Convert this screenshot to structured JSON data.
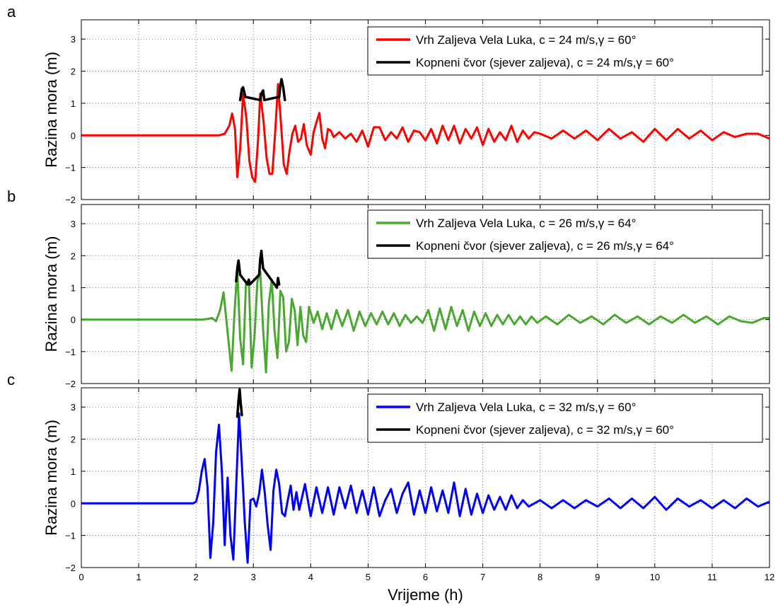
{
  "chart_data": [
    {
      "type": "line",
      "panel_label": "a",
      "xlabel": "",
      "ylabel": "Razina mora (m)",
      "xlim": [
        0,
        12
      ],
      "ylim": [
        -2,
        3.6
      ],
      "xticks": [
        0,
        1,
        2,
        3,
        4,
        5,
        6,
        7,
        8,
        9,
        10,
        11,
        12
      ],
      "yticks": [
        -2,
        -1,
        0,
        1,
        2,
        3
      ],
      "grid": true,
      "legend_position": "top-right",
      "series": [
        {
          "name": "Vrh Zaljeva Vela Luka, c = 24 m/s,γ = 60°",
          "color": "#ff0000",
          "x": [
            0,
            2.2,
            2.4,
            2.5,
            2.58,
            2.63,
            2.68,
            2.72,
            2.77,
            2.82,
            2.88,
            2.93,
            2.98,
            3.03,
            3.08,
            3.12,
            3.18,
            3.23,
            3.28,
            3.33,
            3.38,
            3.43,
            3.48,
            3.53,
            3.58,
            3.63,
            3.68,
            3.73,
            3.78,
            3.83,
            3.88,
            3.93,
            4.0,
            4.05,
            4.1,
            4.15,
            4.2,
            4.25,
            4.3,
            4.35,
            4.4,
            4.5,
            4.6,
            4.7,
            4.8,
            4.9,
            5.0,
            5.1,
            5.2,
            5.3,
            5.4,
            5.5,
            5.6,
            5.7,
            5.8,
            5.9,
            6.0,
            6.1,
            6.2,
            6.3,
            6.4,
            6.5,
            6.6,
            6.7,
            6.8,
            6.9,
            7.0,
            7.1,
            7.2,
            7.3,
            7.4,
            7.5,
            7.6,
            7.7,
            7.8,
            7.9,
            8.0,
            8.2,
            8.4,
            8.6,
            8.8,
            9.0,
            9.2,
            9.4,
            9.6,
            9.8,
            10.0,
            10.2,
            10.4,
            10.6,
            10.8,
            11.0,
            11.2,
            11.4,
            11.6,
            11.8,
            12.0
          ],
          "y": [
            0,
            0,
            0,
            0.05,
            0.3,
            0.68,
            0.2,
            -1.3,
            -0.4,
            1.3,
            0.5,
            -0.8,
            -1.3,
            -1.45,
            -0.2,
            1.3,
            0.4,
            -0.7,
            -1.2,
            -1.2,
            0.1,
            1.6,
            0.4,
            -0.9,
            -1.2,
            -0.5,
            0.05,
            0.3,
            -0.2,
            -0.1,
            0.35,
            -0.3,
            -0.6,
            0.1,
            0.4,
            0.7,
            -0.1,
            -0.4,
            0.2,
            0.15,
            -0.05,
            0.1,
            -0.1,
            0.05,
            -0.2,
            0.15,
            -0.35,
            0.25,
            0.25,
            -0.15,
            0.1,
            -0.1,
            0.25,
            -0.2,
            0.15,
            0.1,
            -0.15,
            0.2,
            -0.25,
            0.3,
            -0.15,
            0.3,
            -0.25,
            0.2,
            -0.1,
            0.25,
            -0.3,
            0.2,
            -0.2,
            0.1,
            -0.15,
            0.3,
            -0.2,
            0.15,
            -0.1,
            0.1,
            0.05,
            -0.1,
            0.15,
            -0.1,
            0.15,
            -0.15,
            0.2,
            -0.1,
            0.1,
            -0.2,
            0.2,
            -0.15,
            0.2,
            -0.1,
            0.15,
            -0.15,
            0.1,
            -0.05,
            0.05,
            0.05,
            -0.1
          ]
        },
        {
          "name": "Kopneni čvor (sjever zaljeva), c = 24 m/s,γ = 60°",
          "color": "#000000",
          "x": [
            2.77,
            2.8,
            2.82,
            2.86,
            3.12,
            3.14,
            3.17,
            3.19,
            3.45,
            3.47,
            3.49,
            3.52,
            3.55
          ],
          "y": [
            1.1,
            1.45,
            1.5,
            1.2,
            1.1,
            1.3,
            1.4,
            1.1,
            1.2,
            1.55,
            1.75,
            1.5,
            1.1
          ]
        }
      ]
    },
    {
      "type": "line",
      "panel_label": "b",
      "xlabel": "",
      "ylabel": "Razina mora (m)",
      "xlim": [
        0,
        12
      ],
      "ylim": [
        -2,
        3.6
      ],
      "xticks": [
        0,
        1,
        2,
        3,
        4,
        5,
        6,
        7,
        8,
        9,
        10,
        11,
        12
      ],
      "yticks": [
        -2,
        -1,
        0,
        1,
        2,
        3
      ],
      "grid": true,
      "legend_position": "top-right",
      "series": [
        {
          "name": "Vrh Zaljeva Vela Luka, c = 26 m/s,γ = 64°",
          "color": "#4aa832",
          "x": [
            0,
            2.1,
            2.2,
            2.28,
            2.35,
            2.42,
            2.48,
            2.55,
            2.62,
            2.67,
            2.72,
            2.77,
            2.82,
            2.87,
            2.92,
            2.97,
            3.02,
            3.07,
            3.12,
            3.17,
            3.22,
            3.27,
            3.32,
            3.37,
            3.42,
            3.47,
            3.52,
            3.57,
            3.62,
            3.67,
            3.72,
            3.77,
            3.82,
            3.87,
            3.92,
            3.97,
            4.05,
            4.12,
            4.2,
            4.28,
            4.36,
            4.45,
            4.55,
            4.65,
            4.75,
            4.85,
            4.95,
            5.05,
            5.15,
            5.25,
            5.35,
            5.45,
            5.55,
            5.65,
            5.75,
            5.85,
            5.95,
            6.05,
            6.15,
            6.25,
            6.35,
            6.45,
            6.55,
            6.65,
            6.75,
            6.85,
            6.95,
            7.05,
            7.15,
            7.25,
            7.35,
            7.45,
            7.55,
            7.65,
            7.75,
            7.85,
            7.95,
            8.1,
            8.3,
            8.5,
            8.7,
            8.9,
            9.1,
            9.3,
            9.5,
            9.7,
            9.9,
            10.1,
            10.3,
            10.5,
            10.7,
            10.9,
            11.1,
            11.3,
            11.5,
            11.7,
            11.9,
            12.0
          ],
          "y": [
            0,
            0,
            0.02,
            0.05,
            -0.05,
            0.3,
            0.85,
            -0.4,
            -1.6,
            0.2,
            1.6,
            -0.6,
            -1.4,
            1.1,
            1.25,
            -1.5,
            -0.5,
            1.2,
            1.5,
            -0.3,
            -1.65,
            0.5,
            1.25,
            -0.4,
            -1.2,
            0.9,
            0.7,
            -1.0,
            -0.7,
            0.65,
            0.3,
            -0.8,
            0.4,
            -0.5,
            -0.7,
            0.4,
            -0.1,
            0.25,
            -0.3,
            0.2,
            -0.3,
            0.3,
            -0.2,
            0.3,
            -0.35,
            0.25,
            -0.2,
            0.2,
            -0.15,
            0.25,
            -0.15,
            0.2,
            -0.2,
            0.15,
            -0.1,
            0.1,
            -0.1,
            0.3,
            -0.35,
            0.35,
            -0.3,
            0.4,
            -0.2,
            0.3,
            -0.35,
            0.25,
            -0.2,
            0.2,
            -0.2,
            0.15,
            -0.15,
            0.15,
            -0.15,
            0.1,
            -0.15,
            0.1,
            -0.1,
            0.1,
            -0.15,
            0.15,
            -0.1,
            0.1,
            -0.15,
            0.15,
            -0.1,
            0.1,
            -0.15,
            0.1,
            -0.1,
            0.15,
            -0.1,
            0.1,
            -0.15,
            0.1,
            -0.05,
            -0.1,
            0.05,
            0.05
          ]
        },
        {
          "name": "Kopneni čvor (sjever zaljeva), c = 26 m/s,γ = 64°",
          "color": "#000000",
          "x": [
            2.7,
            2.72,
            2.74,
            2.77,
            2.9,
            2.92,
            2.94,
            3.1,
            3.12,
            3.14,
            3.17,
            3.41,
            3.43,
            3.45
          ],
          "y": [
            1.2,
            1.6,
            1.85,
            1.4,
            1.1,
            1.25,
            1.1,
            1.4,
            1.9,
            2.15,
            1.6,
            1.0,
            1.3,
            1.1
          ]
        }
      ]
    },
    {
      "type": "line",
      "panel_label": "c",
      "xlabel": "Vrijeme (h)",
      "ylabel": "Razina mora (m)",
      "xlim": [
        0,
        12
      ],
      "ylim": [
        -2,
        3.6
      ],
      "xticks": [
        0,
        1,
        2,
        3,
        4,
        5,
        6,
        7,
        8,
        9,
        10,
        11,
        12
      ],
      "yticks": [
        -2,
        -1,
        0,
        1,
        2,
        3
      ],
      "grid": true,
      "legend_position": "top-right",
      "series": [
        {
          "name": "Vrh Zaljeva Vela Luka, c = 32 m/s,γ = 60°",
          "color": "#0000ff",
          "x": [
            0,
            1.95,
            2.0,
            2.05,
            2.1,
            2.15,
            2.2,
            2.25,
            2.3,
            2.35,
            2.4,
            2.45,
            2.5,
            2.55,
            2.6,
            2.65,
            2.7,
            2.75,
            2.8,
            2.85,
            2.9,
            2.95,
            3.0,
            3.05,
            3.1,
            3.15,
            3.2,
            3.25,
            3.3,
            3.35,
            3.4,
            3.45,
            3.5,
            3.55,
            3.6,
            3.65,
            3.7,
            3.75,
            3.8,
            3.9,
            4.0,
            4.1,
            4.2,
            4.3,
            4.4,
            4.5,
            4.6,
            4.7,
            4.8,
            4.9,
            5.0,
            5.1,
            5.2,
            5.3,
            5.4,
            5.5,
            5.6,
            5.7,
            5.8,
            5.9,
            6.0,
            6.1,
            6.2,
            6.3,
            6.4,
            6.5,
            6.6,
            6.7,
            6.8,
            6.9,
            7.0,
            7.1,
            7.2,
            7.3,
            7.4,
            7.5,
            7.6,
            7.7,
            7.8,
            8.0,
            8.2,
            8.4,
            8.6,
            8.8,
            9.0,
            9.2,
            9.4,
            9.6,
            9.8,
            10.0,
            10.2,
            10.4,
            10.6,
            10.8,
            11.0,
            11.2,
            11.4,
            11.6,
            11.8,
            12.0
          ],
          "y": [
            0,
            0,
            0.05,
            0.4,
            1.0,
            1.38,
            0.5,
            -1.7,
            -0.6,
            1.6,
            2.45,
            1.0,
            -1.3,
            0.8,
            -1.0,
            -1.75,
            0.5,
            2.8,
            1.2,
            -0.6,
            -1.85,
            0.1,
            0.15,
            -0.1,
            0.3,
            1.05,
            0.3,
            -0.7,
            -1.45,
            0.4,
            1.05,
            0.6,
            -0.3,
            -0.4,
            0.1,
            0.55,
            -0.2,
            0.35,
            -0.2,
            0.6,
            -0.4,
            0.5,
            -0.3,
            0.5,
            -0.35,
            0.5,
            -0.15,
            0.55,
            -0.3,
            0.4,
            -0.35,
            0.5,
            -0.4,
            0.1,
            0.45,
            -0.3,
            0.3,
            0.65,
            -0.35,
            0.4,
            -0.3,
            0.5,
            -0.25,
            0.4,
            -0.3,
            0.65,
            -0.4,
            0.45,
            -0.35,
            0.3,
            -0.3,
            0.25,
            -0.2,
            0.2,
            -0.2,
            0.25,
            -0.15,
            0.1,
            -0.1,
            0.1,
            -0.15,
            0.1,
            -0.15,
            0.1,
            -0.1,
            0.15,
            -0.15,
            0.15,
            -0.15,
            0.2,
            -0.2,
            0.15,
            -0.1,
            0.1,
            -0.15,
            0.1,
            -0.15,
            0.15,
            -0.1,
            0.05
          ]
        },
        {
          "name": "Kopneni čvor (sjever zaljeva), c = 32 m/s,γ = 60°",
          "color": "#000000",
          "x": [
            2.72,
            2.74,
            2.76,
            2.78,
            2.8
          ],
          "y": [
            2.7,
            3.2,
            3.55,
            3.1,
            2.75
          ]
        }
      ]
    }
  ]
}
